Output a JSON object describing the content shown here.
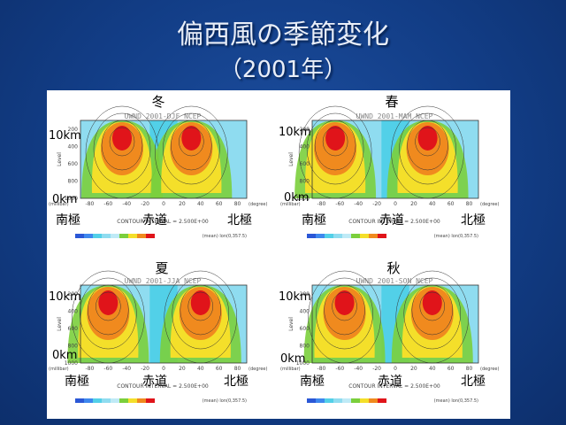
{
  "slide": {
    "title": "偏西風の季節変化",
    "subtitle": "（2001年）"
  },
  "colors": {
    "background": "#123d86",
    "title_text": "#e9eef8",
    "core_red": "#e0141a",
    "orange": "#f08a1e",
    "yellow": "#f4df2a",
    "green": "#7bcf3c",
    "cyan": "#52d0e8",
    "lightblue": "#8fdcf0"
  },
  "panels": [
    {
      "season": "冬",
      "header": "UWND_2001-DJF_NCEP",
      "top_label": "10km",
      "bottom_label": "0km",
      "south_label": "南極",
      "equator_label": "赤道",
      "north_label": "北極",
      "contour_interval": "CONTOUR INTERVAL = 2.500E+00",
      "footer_right": "(mean) lon(0,357.5)",
      "jets": [
        {
          "lat": -45
        },
        {
          "lat": 30
        }
      ]
    },
    {
      "season": "春",
      "header": "UWND_2001-MAM_NCEP",
      "top_label": "10km",
      "bottom_label": "0km",
      "south_label": "南極",
      "equator_label": "赤道",
      "north_label": "北極",
      "contour_interval": "CONTOUR INTERVAL = 2.500E+00",
      "footer_right": "(mean) lon(0,357.5)",
      "jets": [
        {
          "lat": -65
        },
        {
          "lat": 35
        }
      ]
    },
    {
      "season": "夏",
      "header": "UWND_2001-JJA_NCEP",
      "top_label": "10km",
      "bottom_label": "0km",
      "south_label": "南極",
      "equator_label": "赤道",
      "north_label": "北極",
      "contour_interval": "CONTOUR INTERVAL = 2.500E+00",
      "footer_right": "(mean) lon(0,357.5)",
      "jets": [
        {
          "lat": -60
        },
        {
          "lat": 40
        }
      ]
    },
    {
      "season": "秋",
      "header": "UWND_2001-SON_NCEP",
      "top_label": "10km",
      "bottom_label": "0km",
      "south_label": "南極",
      "equator_label": "赤道",
      "north_label": "北極",
      "contour_interval": "CONTOUR INTERVAL = 2.500E+00",
      "footer_right": "(mean) lon(0,357.5)",
      "jets": [
        {
          "lat": -55
        },
        {
          "lat": 40
        }
      ]
    }
  ],
  "axis": {
    "x_ticks": [
      "-80",
      "-60",
      "-40",
      "-20",
      "0",
      "20",
      "40",
      "60",
      "80"
    ],
    "y_ticks": [
      "200",
      "400",
      "600",
      "800",
      "1000"
    ],
    "y_label": "Level",
    "x_unit": "(degree)",
    "y_unit": "(millibar)"
  }
}
